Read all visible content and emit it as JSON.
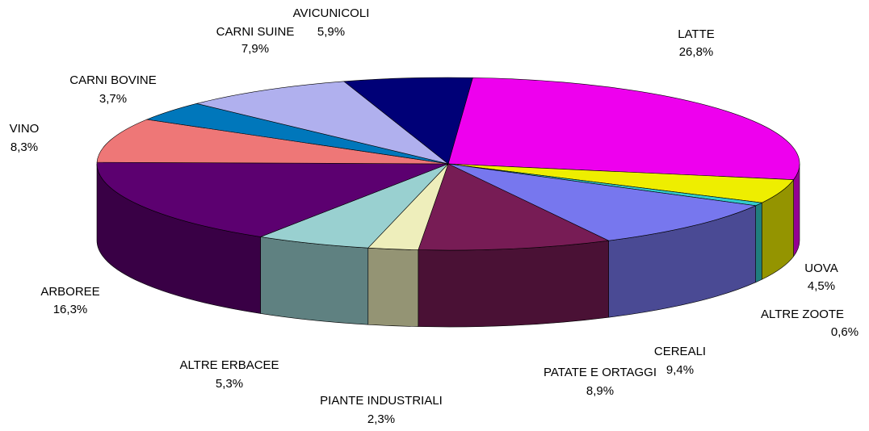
{
  "chart_data": {
    "type": "pie3d",
    "categories": [
      "LATTE",
      "UOVA",
      "ALTRE ZOOTE",
      "CEREALI",
      "PATATE E ORTAGGI",
      "PIANTE INDUSTRIALI",
      "ALTRE ERBACEE",
      "ARBOREE",
      "VINO",
      "CARNI BOVINE",
      "CARNI SUINE",
      "AVICUNICOLI"
    ],
    "values": [
      26.8,
      4.5,
      0.6,
      9.4,
      8.9,
      2.3,
      5.3,
      16.3,
      8.3,
      3.7,
      7.9,
      5.9
    ],
    "value_labels": [
      "26,8%",
      "4,5%",
      "0,6%",
      "9,4%",
      "8,9%",
      "2,3%",
      "5,3%",
      "16,3%",
      "8,3%",
      "3,7%",
      "7,9%",
      "5,9%"
    ],
    "colors": [
      "#ee00ee",
      "#eeee00",
      "#33cccc",
      "#7777ee",
      "#771c55",
      "#eeeebb",
      "#99d0d0",
      "#5c0070",
      "#ee7777",
      "#0077bb",
      "#b0b0ee",
      "#000077"
    ]
  }
}
